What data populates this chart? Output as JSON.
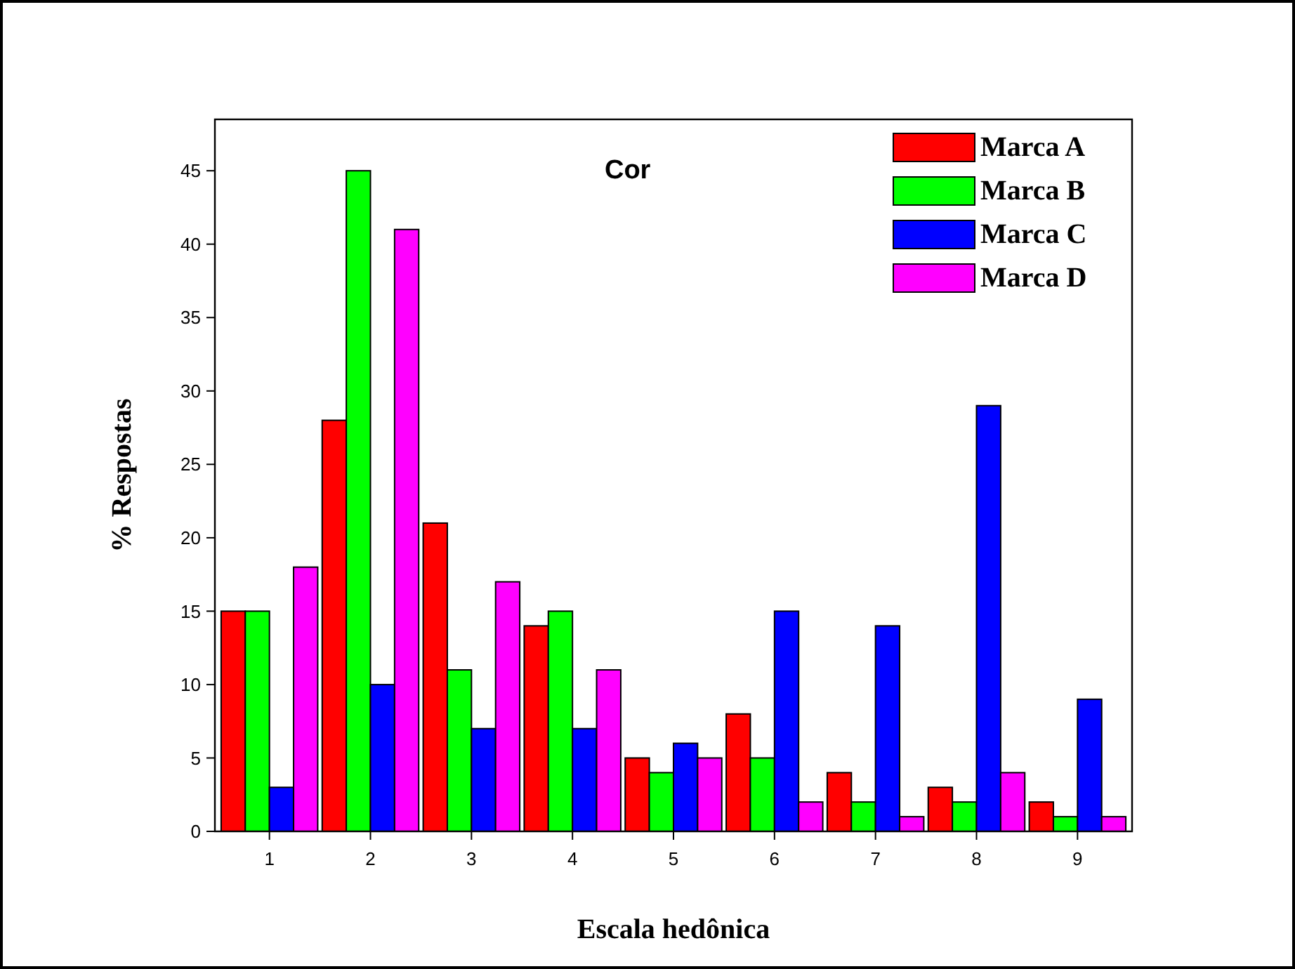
{
  "chart_data": {
    "type": "bar",
    "title": "Cor",
    "xlabel": "Escala hedônica",
    "ylabel": "% Respostas",
    "categories": [
      "1",
      "2",
      "3",
      "4",
      "5",
      "6",
      "7",
      "8",
      "9"
    ],
    "series": [
      {
        "name": "Marca A",
        "color": "#ff0000",
        "values": [
          15,
          28,
          21,
          14,
          5,
          8,
          4,
          3,
          2
        ]
      },
      {
        "name": "Marca B",
        "color": "#00ff00",
        "values": [
          15,
          45,
          11,
          15,
          4,
          5,
          2,
          2,
          1
        ]
      },
      {
        "name": "Marca C",
        "color": "#0000ff",
        "values": [
          3,
          10,
          7,
          7,
          6,
          15,
          14,
          29,
          9
        ]
      },
      {
        "name": "Marca D",
        "color": "#ff00ff",
        "values": [
          18,
          41,
          17,
          11,
          5,
          2,
          1,
          4,
          1
        ]
      }
    ],
    "ylim": [
      0,
      48.5
    ],
    "yticks": [
      0,
      5,
      10,
      15,
      20,
      25,
      30,
      35,
      40,
      45
    ],
    "grid": false,
    "legend": "top right"
  }
}
